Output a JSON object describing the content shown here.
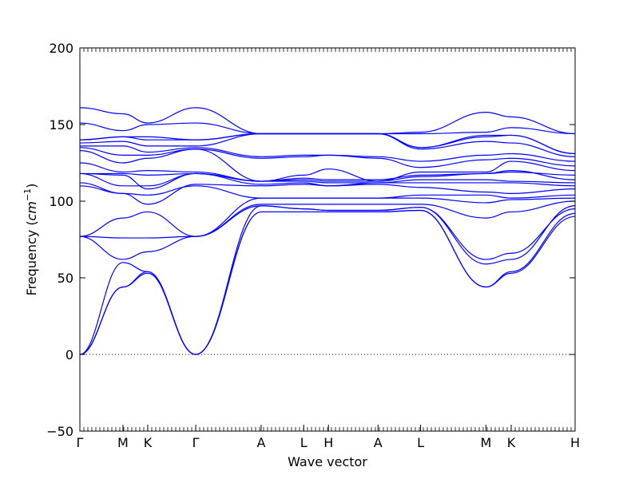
{
  "chart_data": {
    "type": "line",
    "title": "",
    "xlabel": "Wave vector",
    "ylabel_main": "Frequency (",
    "ylabel_unit": "cm",
    "ylabel_exp": "−1",
    "ylabel_close": ")",
    "ylim": [
      -50,
      200
    ],
    "yticks": [
      {
        "value": 200,
        "label": "200"
      },
      {
        "value": 150,
        "label": "150"
      },
      {
        "value": 100,
        "label": "100"
      },
      {
        "value": 50,
        "label": "50"
      },
      {
        "value": 0,
        "label": "0"
      },
      {
        "value": -50,
        "label": "−50"
      }
    ],
    "xlim": [
      0,
      1
    ],
    "high_symmetry_points": [
      {
        "label": "Γ",
        "position": 0.0
      },
      {
        "label": "M",
        "position": 0.087
      },
      {
        "label": "K",
        "position": 0.137
      },
      {
        "label": "Γ",
        "position": 0.234
      },
      {
        "label": "A",
        "position": 0.366
      },
      {
        "label": "L",
        "position": 0.452
      },
      {
        "label": "H",
        "position": 0.502
      },
      {
        "label": "A",
        "position": 0.602
      },
      {
        "label": "L",
        "position": 0.688
      },
      {
        "label": "M",
        "position": 0.82
      },
      {
        "label": "K",
        "position": 0.871
      },
      {
        "label": "H",
        "position": 1.0
      }
    ],
    "zero_line": true,
    "line_color": "#0000ff",
    "segments": [
      {
        "from": 0.0,
        "to": 0.087
      },
      {
        "from": 0.087,
        "to": 0.137
      },
      {
        "from": 0.137,
        "to": 0.234
      },
      {
        "from": 0.234,
        "to": 0.366
      },
      {
        "from": 0.366,
        "to": 0.452
      },
      {
        "from": 0.452,
        "to": 0.502
      },
      {
        "from": 0.502,
        "to": 0.602
      },
      {
        "from": 0.602,
        "to": 0.688
      },
      {
        "from": 0.688,
        "to": 0.82
      },
      {
        "from": 0.82,
        "to": 0.871
      },
      {
        "from": 0.871,
        "to": 1.0
      }
    ],
    "series": [
      {
        "values": [
          0,
          44,
          54,
          0,
          93,
          93,
          93,
          93,
          94,
          44,
          53,
          90
        ]
      },
      {
        "values": [
          0,
          44,
          53,
          0,
          93,
          93,
          93,
          93,
          94,
          44,
          54,
          92
        ]
      },
      {
        "values": [
          0,
          60,
          54,
          0,
          97,
          95,
          94,
          94,
          96,
          59,
          62,
          97
        ]
      },
      {
        "values": [
          77,
          62,
          67,
          77,
          97,
          95,
          94,
          94,
          96,
          62,
          66,
          95
        ]
      },
      {
        "values": [
          77,
          76,
          76,
          77,
          98,
          98,
          98,
          98,
          98,
          89,
          93,
          100
        ]
      },
      {
        "values": [
          77,
          89,
          93,
          77,
          102,
          102,
          102,
          102,
          102,
          99,
          101,
          102
        ]
      },
      {
        "values": [
          110,
          105,
          104,
          110,
          102,
          102,
          102,
          102,
          104,
          104,
          102,
          104
        ]
      },
      {
        "values": [
          112,
          105,
          98,
          111,
          110,
          111,
          110,
          111,
          109,
          106,
          105,
          108
        ]
      },
      {
        "values": [
          118,
          110,
          110,
          118,
          111,
          112,
          110,
          112,
          112,
          112,
          112,
          110
        ]
      },
      {
        "values": [
          118,
          117,
          108,
          118,
          113,
          113,
          112,
          112,
          114,
          114,
          113,
          112
        ]
      },
      {
        "values": [
          118,
          118,
          117,
          118,
          113,
          114,
          113,
          113,
          116,
          118,
          120,
          114
        ]
      },
      {
        "values": [
          125,
          119,
          120,
          119,
          113,
          115,
          114,
          114,
          117,
          118,
          119,
          117
        ]
      },
      {
        "values": [
          133,
          125,
          128,
          134,
          113,
          117,
          121,
          113,
          119,
          119,
          126,
          120
        ]
      },
      {
        "values": [
          135,
          130,
          130,
          134,
          128,
          129,
          130,
          128,
          122,
          127,
          128,
          123
        ]
      },
      {
        "values": [
          136,
          136,
          132,
          135,
          129,
          130,
          130,
          129,
          126,
          130,
          131,
          126
        ]
      },
      {
        "values": [
          138,
          139,
          136,
          136,
          144,
          144,
          144,
          144,
          134,
          139,
          138,
          129
        ]
      },
      {
        "values": [
          140,
          142,
          140,
          140,
          144,
          144,
          144,
          144,
          135,
          142,
          143,
          131
        ]
      },
      {
        "values": [
          140,
          142,
          142,
          140,
          144,
          144,
          144,
          144,
          135,
          143,
          143,
          131
        ]
      },
      {
        "values": [
          151,
          146,
          150,
          151,
          144,
          144,
          144,
          144,
          144,
          145,
          148,
          144
        ]
      },
      {
        "values": [
          161,
          157,
          151,
          161,
          144,
          144,
          144,
          144,
          145,
          158,
          155,
          144
        ]
      }
    ]
  }
}
